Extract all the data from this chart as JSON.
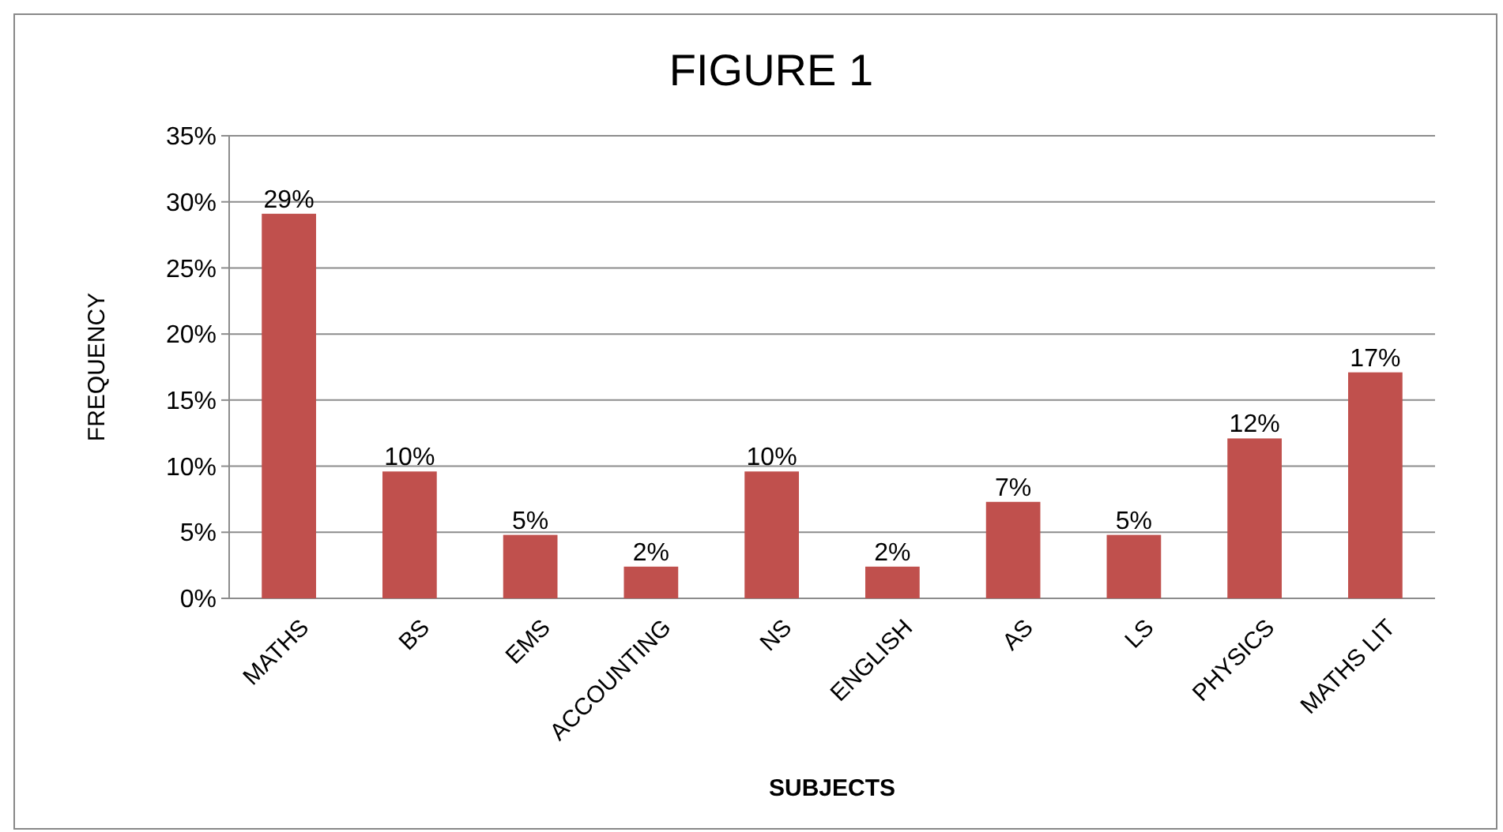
{
  "chart_data": {
    "type": "bar",
    "title": "FIGURE 1",
    "xlabel": "SUBJECTS",
    "ylabel": "FREQUENCY",
    "categories": [
      "MATHS",
      "BS",
      "EMS",
      "ACCOUNTING",
      "NS",
      "ENGLISH",
      "AS",
      "LS",
      "PHYSICS",
      "MATHS LIT"
    ],
    "values": [
      29.1,
      9.6,
      4.8,
      2.4,
      9.6,
      2.4,
      7.3,
      4.8,
      12.1,
      17.1
    ],
    "value_labels": [
      "29%",
      "10%",
      "5%",
      "2%",
      "10%",
      "2%",
      "7%",
      "5%",
      "12%",
      "17%"
    ],
    "color": "#c0504d",
    "ylim": [
      0,
      35
    ],
    "yticks": [
      {
        "value": 0,
        "label": "0%"
      },
      {
        "value": 5,
        "label": "5%"
      },
      {
        "value": 10,
        "label": "10%"
      },
      {
        "value": 15,
        "label": "15%"
      },
      {
        "value": 20,
        "label": "20%"
      },
      {
        "value": 25,
        "label": "25%"
      },
      {
        "value": 30,
        "label": "30%"
      },
      {
        "value": 35,
        "label": "35%"
      }
    ],
    "grid": "y"
  }
}
